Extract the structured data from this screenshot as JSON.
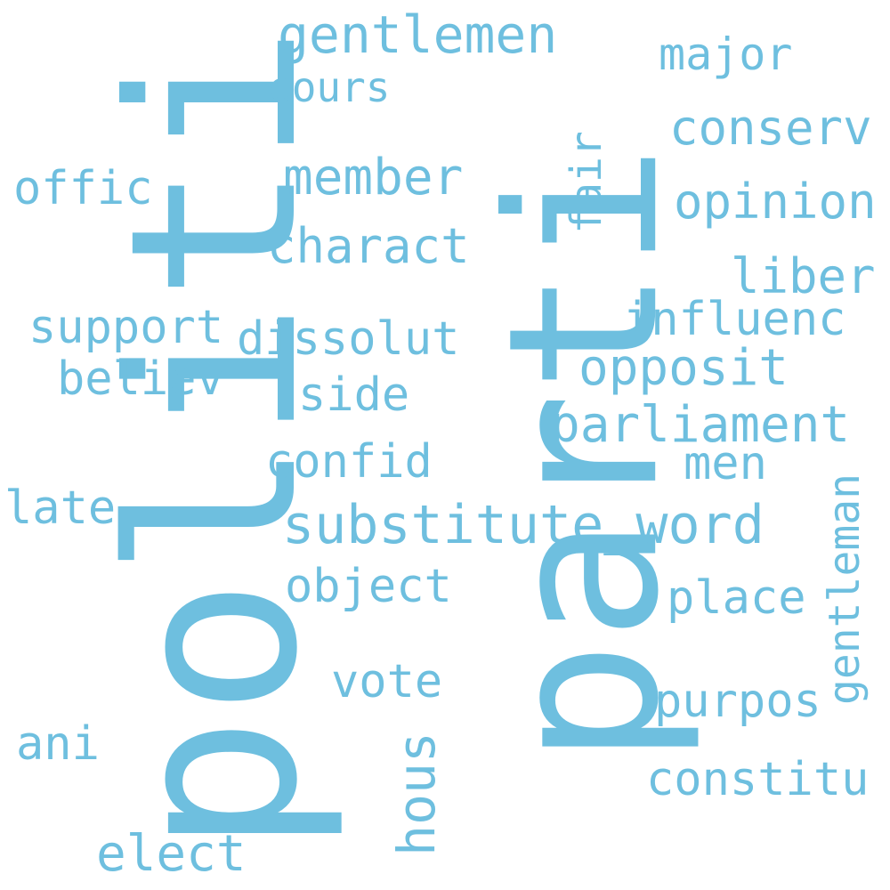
{
  "cloud": {
    "color": "#6ebfdf",
    "background": "#ffffff",
    "words": {
      "politi": "politi",
      "parti": "parti",
      "gentlemen": "gentlemen",
      "cours": "cours",
      "major": "major",
      "conserv": "conserv",
      "offic": "offic",
      "member": "member",
      "fair": "fair",
      "opinion": "opinion",
      "charact": "charact",
      "liber": "liber",
      "support": "support",
      "dissolut": "dissolut",
      "influenc": "influenc",
      "believ": "believ",
      "side": "side",
      "opposit": "opposit",
      "parliament": "parliament",
      "confid": "confid",
      "men": "men",
      "late": "late",
      "substitute_word": "substitute_word",
      "gentleman": "gentleman",
      "object": "object",
      "place": "place",
      "vote": "vote",
      "purpos": "purpos",
      "ani": "ani",
      "hous": "hous",
      "constitu": "constitu",
      "elect": "elect"
    }
  }
}
